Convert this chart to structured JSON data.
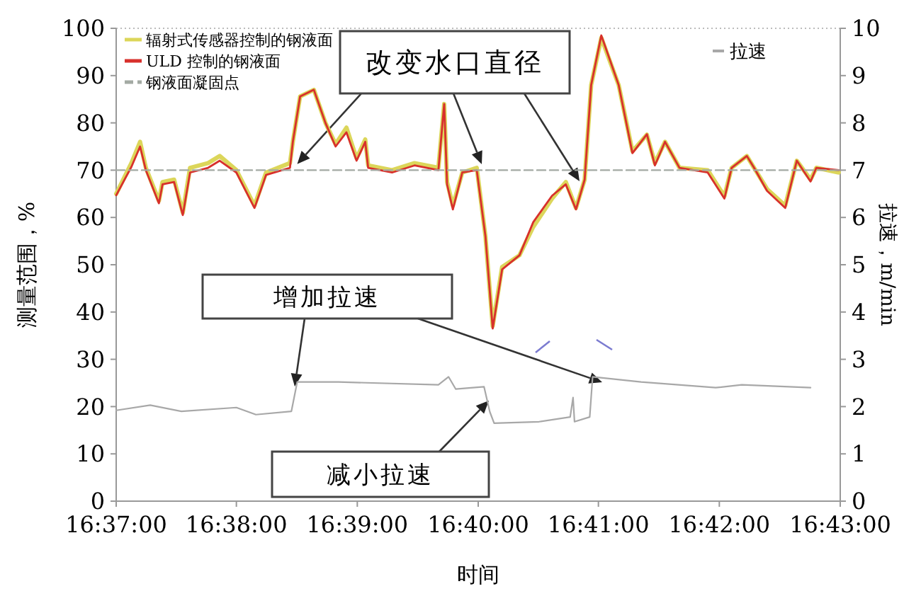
{
  "chart_data": {
    "type": "line",
    "xlabel": "时间",
    "ylabel": "测量范围，%",
    "y2label": "拉速，m/min",
    "xlim": [
      16.6167,
      16.7167
    ],
    "xticks": [
      {
        "value": 16.6167,
        "label": "16:37:00"
      },
      {
        "value": 16.6333,
        "label": "16:38:00"
      },
      {
        "value": 16.65,
        "label": "16:39:00"
      },
      {
        "value": 16.6667,
        "label": "16:40:00"
      },
      {
        "value": 16.6833,
        "label": "16:41:00"
      },
      {
        "value": 16.7,
        "label": "16:42:00"
      },
      {
        "value": 16.7167,
        "label": "16:43:00"
      }
    ],
    "ylim": [
      0,
      100
    ],
    "yticks": [
      0,
      10,
      20,
      30,
      40,
      50,
      60,
      70,
      80,
      90,
      100
    ],
    "y2lim": [
      0,
      10
    ],
    "y2ticks": [
      0,
      1,
      2,
      3,
      4,
      5,
      6,
      7,
      8,
      9,
      10
    ],
    "grid": false,
    "legend": "top left",
    "marker": "none",
    "annotations": [
      {
        "text": "改变水口直径",
        "x": 16.6417,
        "y": 71.3
      },
      "增加拉速",
      "减小拉速"
    ],
    "series": [
      {
        "name": "辐射式传感器控制的钢液面",
        "color": "#dcd65a",
        "x": [
          16.6167,
          16.6188,
          16.62,
          16.6208,
          16.6226,
          16.6231,
          16.6247,
          16.6259,
          16.6269,
          16.6294,
          16.631,
          16.6333,
          16.6358,
          16.6374,
          16.6407,
          16.6411,
          16.6421,
          16.644,
          16.6456,
          16.647,
          16.6485,
          16.6499,
          16.6511,
          16.6515,
          16.6548,
          16.6579,
          16.6612,
          16.662,
          16.6624,
          16.6632,
          16.6645,
          16.6665,
          16.6677,
          16.6687,
          16.67,
          16.6724,
          16.6743,
          16.6769,
          16.6788,
          16.6802,
          16.6814,
          16.6823,
          16.6837,
          16.6861,
          16.688,
          16.69,
          16.6911,
          16.6925,
          16.6945,
          16.6984,
          16.7007,
          16.7017,
          16.7038,
          16.7048,
          16.7066,
          16.7091,
          16.7107,
          16.7126,
          16.7134,
          16.7165
        ],
        "values": [
          65,
          71.5,
          76,
          70.5,
          63.5,
          67.5,
          68,
          61,
          70.5,
          71.5,
          73,
          70,
          62.5,
          69.5,
          71.5,
          76,
          85.6,
          87,
          80,
          75.5,
          79,
          72.5,
          76.5,
          71,
          70,
          71.5,
          70.5,
          84,
          67.5,
          62.5,
          69.5,
          70.5,
          56,
          37,
          49.5,
          52,
          58,
          64,
          67.5,
          62,
          68,
          88,
          98,
          88,
          74,
          77.5,
          71.5,
          76,
          70.5,
          70,
          64.5,
          70.5,
          73,
          70.5,
          66,
          62.5,
          72,
          68,
          70.5,
          69.5
        ]
      },
      {
        "name": "ULD 控制的钢液面",
        "color": "#d8302c",
        "x": [
          16.6167,
          16.6188,
          16.62,
          16.6208,
          16.6226,
          16.6231,
          16.6247,
          16.6259,
          16.6269,
          16.6294,
          16.631,
          16.6333,
          16.6358,
          16.6374,
          16.6407,
          16.6411,
          16.6421,
          16.644,
          16.6456,
          16.647,
          16.6485,
          16.6499,
          16.6511,
          16.6515,
          16.6548,
          16.6579,
          16.6612,
          16.662,
          16.6624,
          16.6632,
          16.6645,
          16.6665,
          16.6677,
          16.6687,
          16.67,
          16.6724,
          16.6743,
          16.6769,
          16.6788,
          16.6802,
          16.6814,
          16.6823,
          16.6837,
          16.6861,
          16.688,
          16.69,
          16.6911,
          16.6925,
          16.6945,
          16.6984,
          16.7007,
          16.7017,
          16.7038,
          16.7048,
          16.7066,
          16.7091,
          16.7107,
          16.7126,
          16.7134,
          16.7165
        ],
        "values": [
          64.7,
          70.7,
          75,
          70,
          63,
          67,
          67.5,
          60.5,
          69.5,
          70.5,
          72,
          69.5,
          62,
          69,
          70.5,
          76,
          85.6,
          87,
          80,
          75,
          78,
          72,
          76,
          70.5,
          69.5,
          71,
          70,
          84,
          67,
          61.7,
          69.5,
          70,
          56,
          36.5,
          49,
          52,
          59,
          64.6,
          67,
          61.7,
          68,
          88,
          98.5,
          88,
          73.6,
          77.6,
          71,
          76,
          70.5,
          69.5,
          64,
          70.5,
          73,
          70.5,
          65.6,
          62,
          72,
          67.6,
          70.5,
          70
        ]
      },
      {
        "name": "钢液面凝固点",
        "color": "#a3aaa3",
        "line_style": "dashed",
        "x": [
          16.6167,
          16.7167
        ],
        "values": [
          70,
          70
        ]
      },
      {
        "name": "拉速",
        "color": "#a8a8a8",
        "axis": "y2",
        "x": [
          16.6167,
          16.6214,
          16.6257,
          16.6333,
          16.636,
          16.6409,
          16.6417,
          16.6474,
          16.6612,
          16.6626,
          16.6636,
          16.6675,
          16.6683,
          16.6689,
          16.6751,
          16.6794,
          16.6798,
          16.68,
          16.6821,
          16.6825,
          16.6892,
          16.6995,
          16.7031,
          16.7126
        ],
        "values": [
          1.92,
          2.03,
          1.9,
          1.98,
          1.83,
          1.9,
          2.52,
          2.52,
          2.46,
          2.63,
          2.37,
          2.42,
          1.89,
          1.65,
          1.68,
          1.78,
          2.19,
          1.68,
          1.78,
          2.63,
          2.52,
          2.4,
          2.46,
          2.4
        ]
      }
    ]
  }
}
